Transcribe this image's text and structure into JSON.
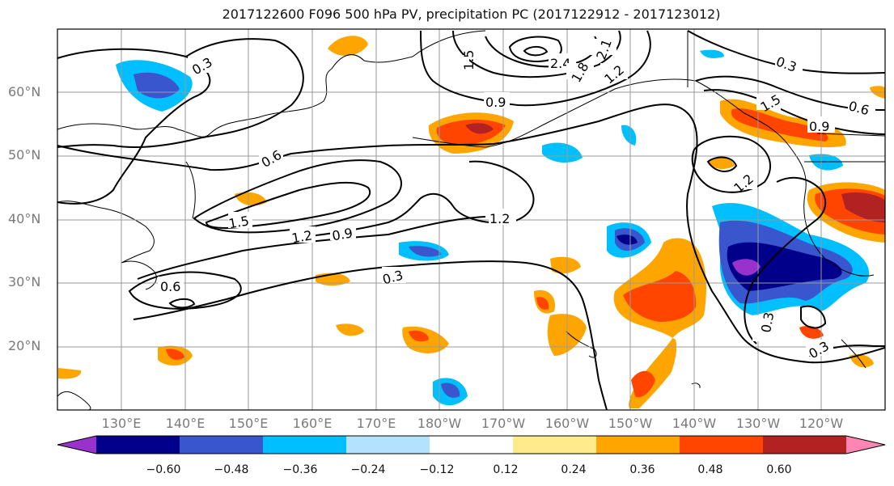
{
  "title": "2017122600 F096 500 hPa PV, precipitation PC (2017122912 - 2017123012)",
  "lat_labels": [
    "60°N",
    "50°N",
    "40°N",
    "30°N",
    "20°N"
  ],
  "lon_labels": [
    "130°E",
    "140°E",
    "150°E",
    "160°E",
    "170°E",
    "180°W",
    "170°W",
    "160°W",
    "150°W",
    "140°W",
    "130°W",
    "120°W"
  ],
  "contour_labels": [
    "0.3",
    "0.6",
    "0.9",
    "1.2",
    "1.5",
    "1.8",
    "2.1",
    "2.4"
  ],
  "colorbar": {
    "tick_labels": [
      "−0.60",
      "−0.48",
      "−0.36",
      "−0.24",
      "−0.12",
      "0.12",
      "0.24",
      "0.36",
      "0.48",
      "0.60"
    ],
    "colors": [
      "#9932cc",
      "#00008b",
      "#3a56cf",
      "#00bfff",
      "#b3e2ff",
      "#ffffff",
      "#ffea8c",
      "#ffa500",
      "#ff4500",
      "#b22222",
      "#ff85b3"
    ]
  }
}
